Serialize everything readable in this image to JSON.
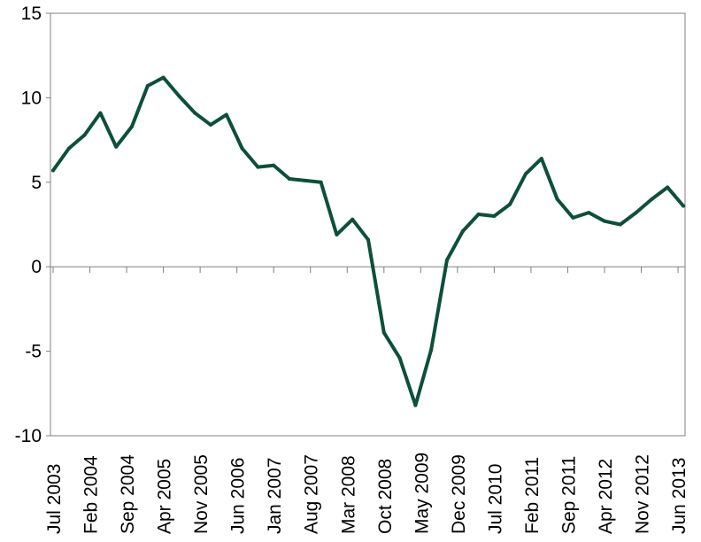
{
  "chart_data": {
    "type": "line",
    "title": "",
    "xlabel": "",
    "ylabel": "",
    "ylim": [
      -10,
      15
    ],
    "yticks": [
      15,
      10,
      5,
      0,
      -5,
      -10
    ],
    "grid": false,
    "legend": "none",
    "x": [
      "Jul 2003",
      "Oct 2003",
      "Jan 2004",
      "Apr 2004",
      "Jul 2004",
      "Oct 2004",
      "Jan 2005",
      "Apr 2005",
      "Jul 2005",
      "Oct 2005",
      "Jan 2006",
      "Apr 2006",
      "Jul 2006",
      "Oct 2006",
      "Jan 2007",
      "Apr 2007",
      "Jul 2007",
      "Oct 2007",
      "Jan 2008",
      "Apr 2008",
      "Jul 2008",
      "Oct 2008",
      "Jan 2009",
      "Apr 2009",
      "Jul 2009",
      "Oct 2009",
      "Jan 2010",
      "Apr 2010",
      "Jul 2010",
      "Oct 2010",
      "Jan 2011",
      "Apr 2011",
      "Jul 2011",
      "Oct 2011",
      "Jan 2012",
      "Apr 2012",
      "Jul 2012",
      "Oct 2012",
      "Jan 2013",
      "Apr 2013",
      "Jul 2013"
    ],
    "x_tick_labels": [
      "Jul 2003",
      "Feb 2004",
      "Sep 2004",
      "Apr 2005",
      "Nov 2005",
      "Jun 2006",
      "Jan 2007",
      "Aug 2007",
      "Mar 2008",
      "Oct 2008",
      "May 2009",
      "Dec 2009",
      "Jul 2010",
      "Feb 2011",
      "Sep 2011",
      "Apr 2012",
      "Nov 2012",
      "Jun 2013"
    ],
    "series": [
      {
        "color": "#0d4f3c",
        "values": [
          5.7,
          7.0,
          7.8,
          9.1,
          7.1,
          8.3,
          10.7,
          11.2,
          10.1,
          9.1,
          8.4,
          9.0,
          7.0,
          5.9,
          6.0,
          5.2,
          5.1,
          5.0,
          1.9,
          2.8,
          1.6,
          -3.9,
          -5.4,
          -8.2,
          -4.9,
          0.4,
          2.1,
          3.1,
          3.0,
          3.7,
          5.5,
          6.4,
          4.0,
          2.9,
          3.2,
          2.7,
          2.5,
          3.2,
          4.0,
          4.7,
          3.6
        ]
      }
    ]
  }
}
